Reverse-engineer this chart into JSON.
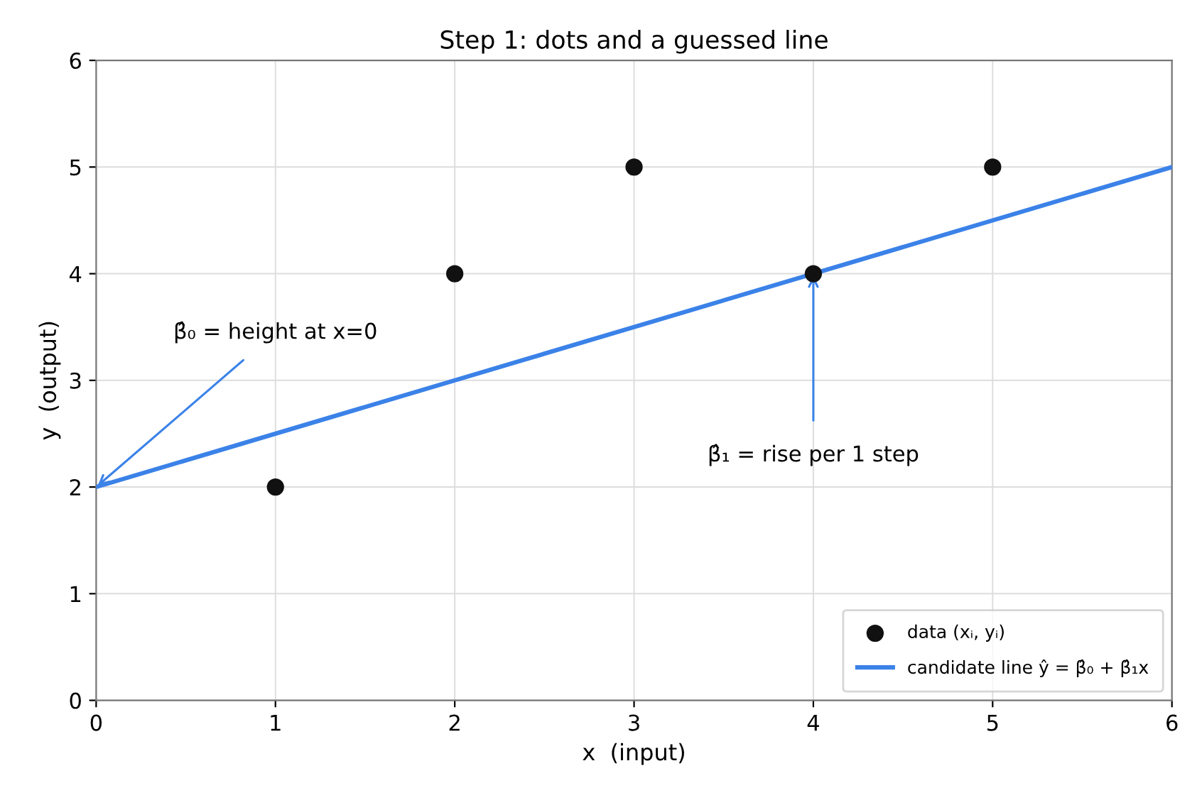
{
  "chart_data": {
    "type": "scatter",
    "title": "Step 1: dots and a guessed line",
    "xlabel": "x  (input)",
    "ylabel": "y  (output)",
    "x": [
      1,
      2,
      3,
      4,
      5
    ],
    "series": [
      {
        "name": "data (xᵢ, yᵢ)",
        "color": "#111111",
        "marker": "circle",
        "values": [
          2,
          4,
          5,
          4,
          5
        ]
      },
      {
        "name": "candidate line ŷ = β̂₀ + β̂₁x",
        "type": "line",
        "color": "#3b82e8",
        "x": [
          0,
          6
        ],
        "values": [
          2,
          5
        ],
        "line_style": "solid"
      }
    ],
    "annotations": [
      {
        "text": "β̂₀ = height at x=0",
        "x": 0,
        "y": 2
      },
      {
        "text": "β̂₁ = rise per 1 step",
        "x": 4,
        "y": 4
      }
    ],
    "xlim": [
      0,
      6
    ],
    "ylim": [
      0,
      6
    ],
    "xticks": [
      0,
      1,
      2,
      3,
      4,
      5,
      6
    ],
    "yticks": [
      0,
      1,
      2,
      3,
      4,
      5,
      6
    ],
    "grid": true,
    "legend": "lower right"
  }
}
